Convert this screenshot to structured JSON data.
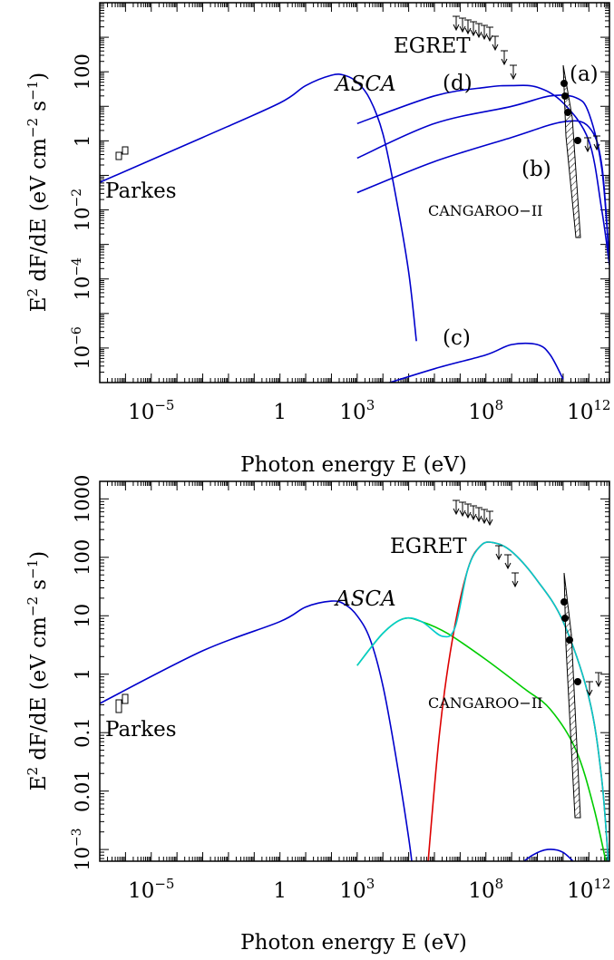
{
  "chart_data": [
    {
      "type": "line",
      "xlabel": "Photon energy E (eV)",
      "ylabel": "E² dF/dE (eV cm⁻² s⁻¹)",
      "ylabel_parts": {
        "a": "E",
        "b": "2",
        "c": " dF/dE (eV cm",
        "d": "−2",
        "e": " s",
        "f": "−1",
        "g": ")"
      },
      "xscale": "log",
      "yscale": "log",
      "xlim_log10": [
        -7,
        12.8
      ],
      "ylim_log10": [
        -7,
        4
      ],
      "xticks": [
        {
          "log": -5,
          "base": "10",
          "exp": "−5"
        },
        {
          "log": 0,
          "text": "1"
        },
        {
          "log": 3,
          "base": "10",
          "exp": "3"
        },
        {
          "log": 8,
          "base": "10",
          "exp": "8"
        },
        {
          "log": 12,
          "base": "10",
          "exp": "12"
        }
      ],
      "yticks": [
        {
          "log": -6,
          "base": "10",
          "exp": "−6"
        },
        {
          "log": -4,
          "base": "10",
          "exp": "−4"
        },
        {
          "log": -2,
          "base": "10",
          "exp": "−2"
        },
        {
          "log": 0,
          "text": "1"
        },
        {
          "log": 2,
          "text": "100"
        }
      ],
      "labels": {
        "asca": "ASCA",
        "egret": "EGRET",
        "parkes": "Parkes",
        "cangaroo": "CANGAROO−II",
        "a": "(a)",
        "b": "(b)",
        "c": "(c)",
        "d": "(d)"
      },
      "series": [
        {
          "color": "#0000cc",
          "points_log10": [
            [
              -7,
              -1.2
            ],
            [
              -3,
              0.1
            ],
            [
              0,
              1.1
            ],
            [
              1,
              1.6
            ],
            [
              2,
              1.9
            ],
            [
              2.5,
              1.9
            ],
            [
              3,
              1.7
            ],
            [
              3.5,
              1.2
            ],
            [
              4,
              0.2
            ],
            [
              4.5,
              -1.6
            ],
            [
              5,
              -3.8
            ],
            [
              5.3,
              -5.8
            ]
          ]
        },
        {
          "color": "#0000cc",
          "points_log10": [
            [
              3,
              0.5
            ],
            [
              6,
              1.3
            ],
            [
              8,
              1.55
            ],
            [
              9,
              1.6
            ],
            [
              10,
              1.55
            ],
            [
              11,
              1.1
            ],
            [
              12,
              0.0
            ],
            [
              12.5,
              -2.0
            ],
            [
              12.8,
              -3.6
            ]
          ]
        },
        {
          "color": "#0000cc",
          "points_log10": [
            [
              3,
              -0.5
            ],
            [
              6,
              0.5
            ],
            [
              9,
              1.0
            ],
            [
              10.5,
              1.3
            ],
            [
              11.5,
              1.25
            ],
            [
              12,
              0.8
            ],
            [
              12.5,
              -0.8
            ],
            [
              12.8,
              -3.5
            ]
          ]
        },
        {
          "color": "#0000cc",
          "points_log10": [
            [
              3,
              -1.5
            ],
            [
              6,
              -0.6
            ],
            [
              9,
              0.1
            ],
            [
              11,
              0.55
            ],
            [
              12,
              0.4
            ],
            [
              12.5,
              -0.7
            ],
            [
              12.8,
              -3.6
            ]
          ]
        },
        {
          "color": "#0000cc",
          "points_log10": [
            [
              3,
              -7.3
            ],
            [
              6,
              -6.6
            ],
            [
              8,
              -6.2
            ],
            [
              9,
              -5.9
            ],
            [
              10,
              -5.9
            ],
            [
              10.5,
              -6.2
            ],
            [
              11,
              -6.9
            ]
          ]
        }
      ]
    },
    {
      "type": "line",
      "xlabel": "Photon energy E (eV)",
      "ylabel": "E² dF/dE (eV cm⁻² s⁻¹)",
      "ylabel_parts": {
        "a": "E",
        "b": "2",
        "c": " dF/dE (eV cm",
        "d": "−2",
        "e": " s",
        "f": "−1",
        "g": ")"
      },
      "xscale": "log",
      "yscale": "log",
      "xlim_log10": [
        -7,
        12.8
      ],
      "ylim_log10": [
        -3.2,
        3.3
      ],
      "xticks": [
        {
          "log": -5,
          "base": "10",
          "exp": "−5"
        },
        {
          "log": 0,
          "text": "1"
        },
        {
          "log": 3,
          "base": "10",
          "exp": "3"
        },
        {
          "log": 8,
          "base": "10",
          "exp": "8"
        },
        {
          "log": 12,
          "base": "10",
          "exp": "12"
        }
      ],
      "yticks": [
        {
          "log": -2,
          "text": "0.01"
        },
        {
          "log": -1,
          "text": "0.1"
        },
        {
          "log": 0,
          "text": "1"
        },
        {
          "log": 1,
          "text": "10"
        },
        {
          "log": 2,
          "text": "100"
        },
        {
          "log": 3,
          "text": "1000"
        }
      ],
      "ytick_extra": {
        "base": "10",
        "exp": "−3"
      },
      "labels": {
        "asca": "ASCA",
        "egret": "EGRET",
        "parkes": "Parkes",
        "cangaroo": "CANGAROO−II"
      },
      "series": [
        {
          "color": "#0000cc",
          "points_log10": [
            [
              -7,
              -0.5
            ],
            [
              -3,
              0.4
            ],
            [
              0,
              0.9
            ],
            [
              1,
              1.15
            ],
            [
              2,
              1.25
            ],
            [
              2.5,
              1.2
            ],
            [
              3,
              1.0
            ],
            [
              3.5,
              0.6
            ],
            [
              4,
              -0.2
            ],
            [
              4.5,
              -1.4
            ],
            [
              5,
              -2.8
            ],
            [
              5.2,
              -3.5
            ]
          ]
        },
        {
          "color": "#0000cc",
          "points_log10": [
            [
              9.2,
              -3.3
            ],
            [
              9.8,
              -3.1
            ],
            [
              10.4,
              -3.0
            ],
            [
              11,
              -3.05
            ],
            [
              11.6,
              -3.3
            ]
          ]
        },
        {
          "color": "#00cc00",
          "points_log10": [
            [
              3,
              0.15
            ],
            [
              4,
              0.7
            ],
            [
              4.8,
              0.95
            ],
            [
              5.5,
              0.9
            ],
            [
              6.5,
              0.7
            ],
            [
              8,
              0.25
            ],
            [
              9.5,
              -0.25
            ],
            [
              10.5,
              -0.6
            ],
            [
              11.5,
              -1.3
            ],
            [
              12.2,
              -2.3
            ],
            [
              12.8,
              -3.5
            ]
          ]
        },
        {
          "color": "#dd0000",
          "points_log10": [
            [
              5.7,
              -3.5
            ],
            [
              6.2,
              -1.0
            ],
            [
              6.7,
              0.6
            ],
            [
              7.3,
              1.8
            ],
            [
              7.8,
              2.2
            ],
            [
              8.3,
              2.25
            ],
            [
              9,
              2.1
            ],
            [
              10,
              1.6
            ],
            [
              11,
              0.9
            ],
            [
              12,
              -0.4
            ],
            [
              12.5,
              -1.8
            ],
            [
              12.8,
              -3.5
            ]
          ]
        },
        {
          "color": "#00cccc",
          "points_log10": [
            [
              3,
              0.15
            ],
            [
              4,
              0.7
            ],
            [
              4.8,
              0.95
            ],
            [
              5.5,
              0.9
            ],
            [
              6.3,
              0.65
            ],
            [
              6.8,
              0.8
            ],
            [
              7.3,
              1.8
            ],
            [
              7.8,
              2.2
            ],
            [
              8.3,
              2.25
            ],
            [
              9,
              2.1
            ],
            [
              10,
              1.6
            ],
            [
              11,
              0.9
            ],
            [
              12,
              -0.4
            ],
            [
              12.5,
              -1.8
            ],
            [
              12.8,
              -3.5
            ]
          ]
        }
      ]
    }
  ]
}
